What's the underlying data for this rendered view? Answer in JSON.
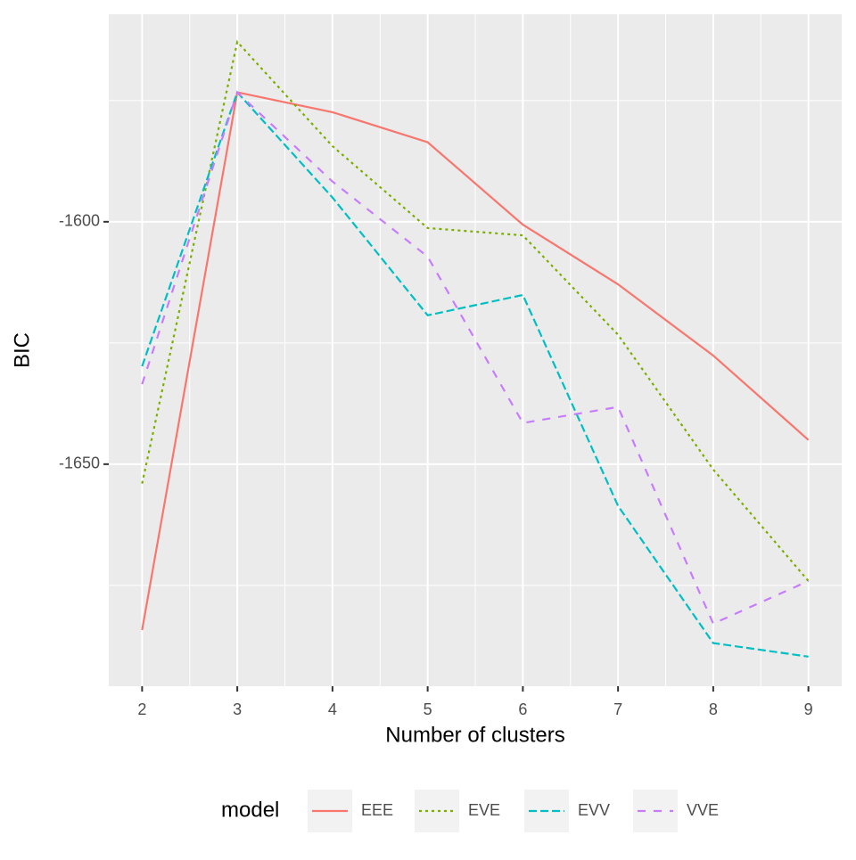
{
  "chart_data": {
    "type": "line",
    "x_label": "Number of clusters",
    "y_label": "BIC",
    "legend_title": "model",
    "x": [
      2,
      3,
      4,
      5,
      6,
      7,
      8,
      9
    ],
    "series": [
      {
        "name": "EEE",
        "color": "#f8766d",
        "dash": "none",
        "values": [
          -1684.2,
          -1573.3,
          -1577.4,
          -1583.6,
          -1600.6,
          -1612.9,
          -1627.6,
          -1645.0
        ]
      },
      {
        "name": "EVE",
        "color": "#7cae00",
        "dash": "3 4",
        "values": [
          -1654.0,
          -1562.9,
          -1584.4,
          -1601.3,
          -1602.8,
          -1623.3,
          -1651.1,
          -1674.1
        ]
      },
      {
        "name": "EVV",
        "color": "#00bfc4",
        "dash": "9 4",
        "values": [
          -1629.8,
          -1573.3,
          -1595.0,
          -1619.3,
          -1615.1,
          -1658.6,
          -1686.9,
          -1689.7
        ]
      },
      {
        "name": "VVE",
        "color": "#c77cff",
        "dash": "9 9",
        "values": [
          -1633.5,
          -1573.3,
          -1591.7,
          -1607.2,
          -1641.5,
          -1638.2,
          -1682.9,
          -1674.1
        ]
      }
    ],
    "xlim": [
      1.65,
      9.35
    ],
    "xticks": [
      2,
      3,
      4,
      5,
      6,
      7,
      8,
      9
    ],
    "xminor": [
      2.5,
      3.5,
      4.5,
      5.5,
      6.5,
      7.5,
      8.5
    ],
    "ylim": [
      -1695.8,
      -1557.2
    ],
    "yticks": [
      -1650,
      -1600
    ],
    "yminor": [
      -1675,
      -1625,
      -1575
    ],
    "grid": true,
    "legend_position": "bottom"
  }
}
